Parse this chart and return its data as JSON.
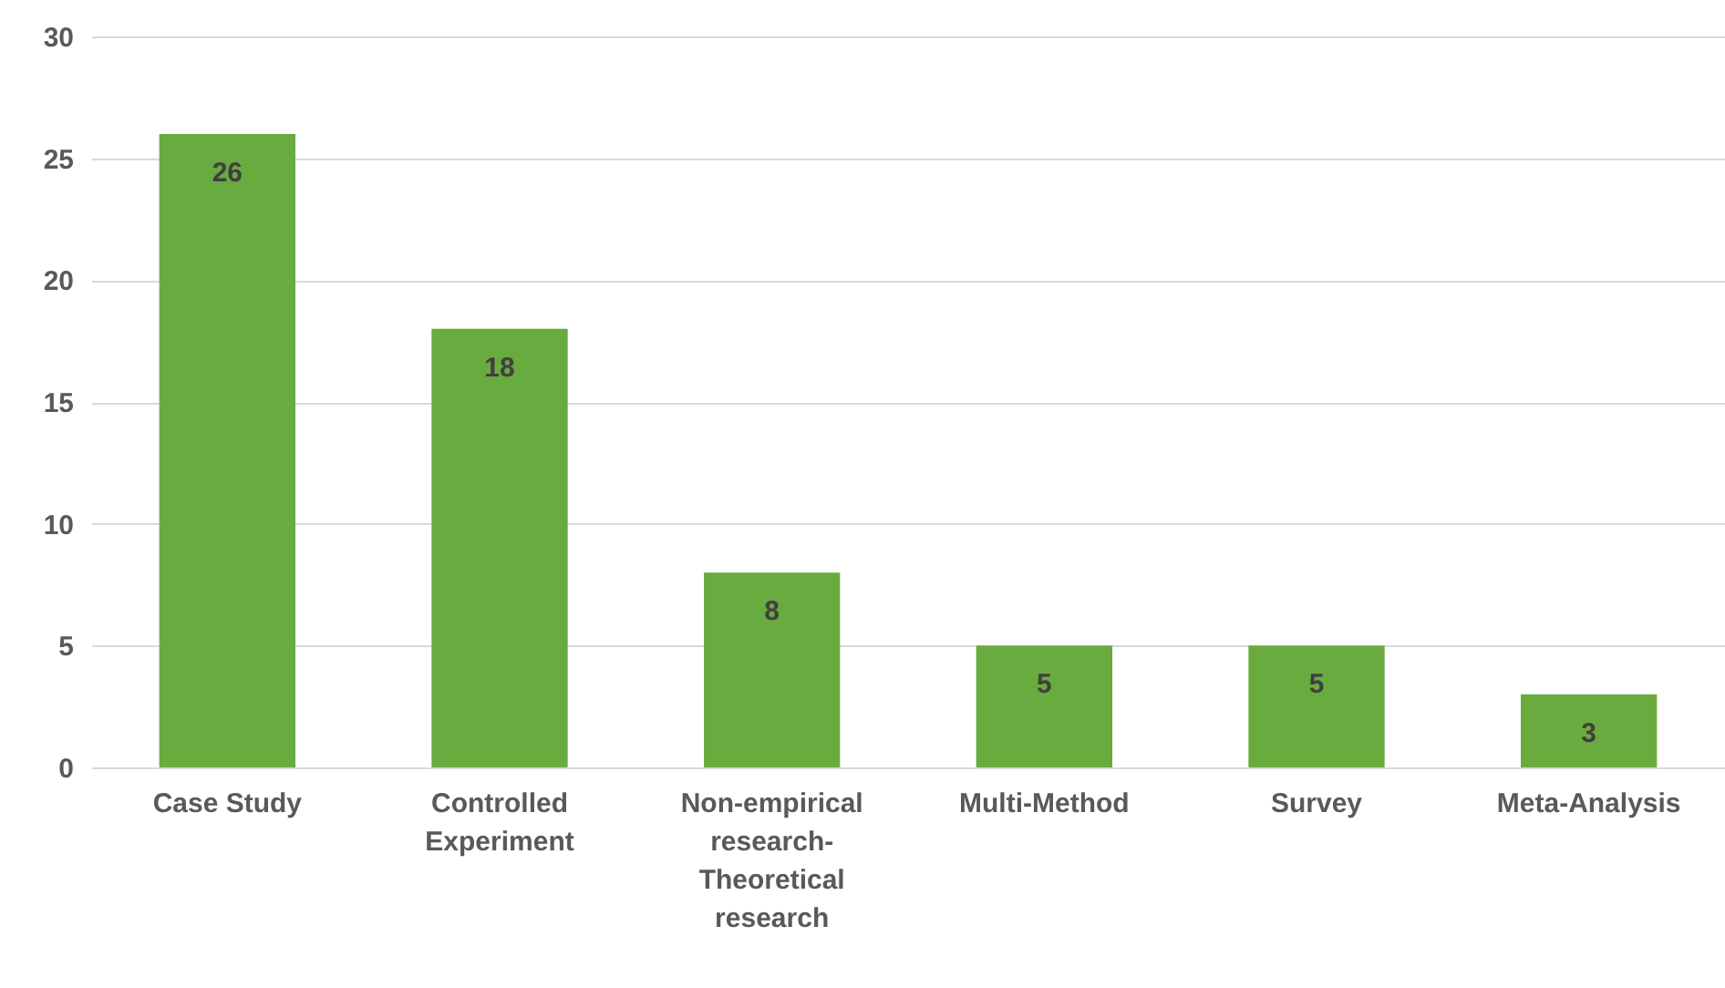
{
  "chart_data": {
    "type": "bar",
    "categories": [
      "Case Study",
      "Controlled Experiment",
      "Non-empirical research-Theoretical research",
      "Multi-Method",
      "Survey",
      "Meta-Analysis"
    ],
    "values": [
      26,
      18,
      8,
      5,
      5,
      3
    ],
    "color": "#6aab3f",
    "ylim": [
      0,
      30
    ],
    "yticks": [
      0,
      5,
      10,
      15,
      20,
      25,
      30
    ],
    "grid": "y",
    "data_labels": true
  }
}
